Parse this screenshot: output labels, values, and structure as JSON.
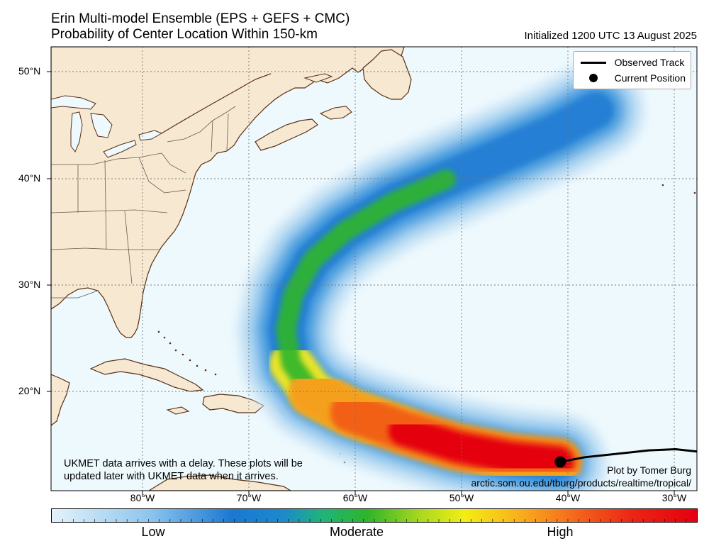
{
  "title_line1": "Erin Multi-model Ensemble (EPS + GEFS + CMC)",
  "title_line2": "Probability of Center Location Within 150-km",
  "initialized": "Initialized 1200 UTC 13 August 2025",
  "lat_labels": [
    "50°N",
    "40°N",
    "30°N",
    "20°N"
  ],
  "lon_labels": [
    "80°W",
    "70°W",
    "60°W",
    "50°W",
    "40°W",
    "30°W"
  ],
  "legend": {
    "observed_track": "Observed Track",
    "current_position": "Current Position"
  },
  "note_line1": "UKMET data arrives with a delay. These plots will be",
  "note_line2": "updated later with UKMET data when it arrives.",
  "credit_line1": "Plot by Tomer Burg",
  "credit_line2": "arctic.som.ou.edu/tburg/products/realtime/tropical/",
  "colorbar": {
    "low": "Low",
    "moderate": "Moderate",
    "high": "High"
  },
  "colors": {
    "ocean": "#eef9fd",
    "land": "#f7e8d2",
    "coast": "#5a2e14",
    "track": "#000000"
  },
  "map_extent": {
    "lon_min": -90,
    "lon_max": -29.5,
    "lat_min": 14,
    "lat_max": 52.5
  },
  "current_position": {
    "lon": -42.3,
    "lat": 16.5
  },
  "observed_track": [
    [
      -42.3,
      16.5
    ],
    [
      -40,
      16.9
    ],
    [
      -37,
      17.2
    ],
    [
      -34,
      17.5
    ],
    [
      -31.5,
      17.6
    ],
    [
      -29.5,
      17.4
    ]
  ],
  "probability_path": [
    [
      -42.5,
      16.5
    ],
    [
      -47,
      16.9
    ],
    [
      -52,
      17.8
    ],
    [
      -57,
      19.2
    ],
    [
      -62,
      20.8
    ],
    [
      -65.5,
      22.5
    ],
    [
      -67.5,
      25
    ],
    [
      -68,
      28
    ],
    [
      -67.3,
      31
    ],
    [
      -65.5,
      34
    ],
    [
      -62.5,
      36.5
    ],
    [
      -58,
      39
    ],
    [
      -53,
      41
    ],
    [
      -48,
      43
    ],
    [
      -43,
      45
    ],
    [
      -39,
      47
    ]
  ]
}
